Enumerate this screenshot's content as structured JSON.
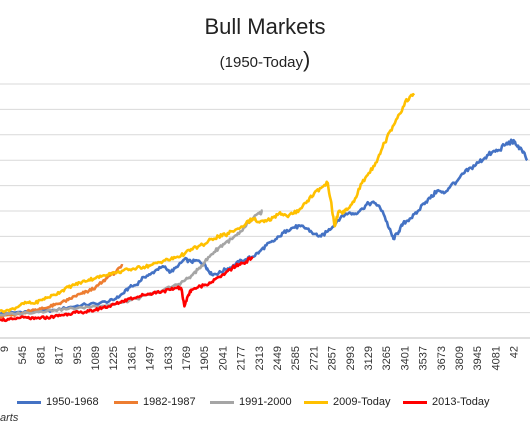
{
  "chart_data": {
    "type": "line",
    "title": "Bull Markets",
    "subtitle": "(1950-Today",
    "subtitle_close": ")",
    "xlabel": "",
    "ylabel": "",
    "grid": "horizontal",
    "legend_position": "bottom",
    "source_note": "arts",
    "x_ticks": [
      "9",
      "545",
      "681",
      "817",
      "953",
      "1089",
      "1225",
      "1361",
      "1497",
      "1633",
      "1769",
      "1905",
      "2041",
      "2177",
      "2313",
      "2449",
      "2585",
      "2721",
      "2857",
      "2993",
      "3129",
      "3265",
      "3401",
      "3537",
      "3673",
      "3809",
      "3945",
      "4081",
      "42"
    ],
    "series": [
      {
        "name": "1950-1968",
        "color": "#4472c4",
        "points": [
          [
            400,
            0.95
          ],
          [
            500,
            1.0
          ],
          [
            600,
            1.05
          ],
          [
            700,
            1.05
          ],
          [
            800,
            1.1
          ],
          [
            900,
            1.2
          ],
          [
            1000,
            1.3
          ],
          [
            1100,
            1.35
          ],
          [
            1200,
            1.45
          ],
          [
            1250,
            1.55
          ],
          [
            1300,
            1.75
          ],
          [
            1350,
            2.0
          ],
          [
            1400,
            2.1
          ],
          [
            1450,
            2.4
          ],
          [
            1500,
            2.5
          ],
          [
            1550,
            2.7
          ],
          [
            1600,
            2.8
          ],
          [
            1650,
            2.6
          ],
          [
            1700,
            2.8
          ],
          [
            1750,
            3.1
          ],
          [
            1800,
            3.0
          ],
          [
            1850,
            3.05
          ],
          [
            1900,
            2.9
          ],
          [
            1920,
            2.7
          ],
          [
            1950,
            2.5
          ],
          [
            2000,
            2.55
          ],
          [
            2050,
            2.7
          ],
          [
            2100,
            2.8
          ],
          [
            2150,
            3.0
          ],
          [
            2200,
            3.1
          ],
          [
            2250,
            3.2
          ],
          [
            2300,
            3.4
          ],
          [
            2350,
            3.65
          ],
          [
            2400,
            3.8
          ],
          [
            2450,
            4.0
          ],
          [
            2500,
            4.25
          ],
          [
            2550,
            4.35
          ],
          [
            2600,
            4.4
          ],
          [
            2650,
            4.3
          ],
          [
            2700,
            4.1
          ],
          [
            2750,
            4.0
          ],
          [
            2800,
            4.2
          ],
          [
            2850,
            4.5
          ],
          [
            2900,
            4.8
          ],
          [
            2950,
            4.9
          ],
          [
            3000,
            4.9
          ],
          [
            3050,
            5.1
          ],
          [
            3100,
            5.3
          ],
          [
            3150,
            5.3
          ],
          [
            3200,
            5.0
          ],
          [
            3250,
            4.3
          ],
          [
            3280,
            3.9
          ],
          [
            3320,
            4.2
          ],
          [
            3350,
            4.5
          ],
          [
            3400,
            4.7
          ],
          [
            3450,
            4.9
          ],
          [
            3500,
            5.3
          ],
          [
            3550,
            5.5
          ],
          [
            3600,
            5.8
          ],
          [
            3650,
            5.7
          ],
          [
            3700,
            6.0
          ],
          [
            3750,
            6.2
          ],
          [
            3800,
            6.5
          ],
          [
            3850,
            6.7
          ],
          [
            3900,
            6.9
          ],
          [
            3950,
            7.1
          ],
          [
            4000,
            7.3
          ],
          [
            4050,
            7.4
          ],
          [
            4100,
            7.6
          ],
          [
            4150,
            7.75
          ],
          [
            4180,
            7.6
          ],
          [
            4220,
            7.4
          ],
          [
            4260,
            7.0
          ]
        ]
      },
      {
        "name": "1982-1987",
        "color": "#ed7d31",
        "points": [
          [
            400,
            0.85
          ],
          [
            450,
            0.9
          ],
          [
            500,
            0.9
          ],
          [
            550,
            0.95
          ],
          [
            600,
            1.05
          ],
          [
            650,
            1.1
          ],
          [
            700,
            1.15
          ],
          [
            750,
            1.2
          ],
          [
            800,
            1.3
          ],
          [
            850,
            1.4
          ],
          [
            900,
            1.5
          ],
          [
            950,
            1.65
          ],
          [
            1000,
            1.75
          ],
          [
            1050,
            1.85
          ],
          [
            1100,
            2.0
          ],
          [
            1150,
            2.2
          ],
          [
            1200,
            2.45
          ],
          [
            1250,
            2.6
          ],
          [
            1300,
            2.85
          ]
        ]
      },
      {
        "name": "1991-2000",
        "color": "#a5a5a5",
        "points": [
          [
            400,
            0.9
          ],
          [
            500,
            0.95
          ],
          [
            600,
            1.0
          ],
          [
            700,
            1.05
          ],
          [
            800,
            1.1
          ],
          [
            900,
            1.15
          ],
          [
            1000,
            1.2
          ],
          [
            1100,
            1.25
          ],
          [
            1200,
            1.3
          ],
          [
            1300,
            1.4
          ],
          [
            1400,
            1.55
          ],
          [
            1500,
            1.7
          ],
          [
            1600,
            1.9
          ],
          [
            1700,
            2.1
          ],
          [
            1750,
            2.25
          ],
          [
            1800,
            2.45
          ],
          [
            1850,
            2.7
          ],
          [
            1900,
            3.0
          ],
          [
            1950,
            3.3
          ],
          [
            2000,
            3.55
          ],
          [
            2050,
            3.75
          ],
          [
            2100,
            3.9
          ],
          [
            2150,
            4.1
          ],
          [
            2200,
            4.4
          ],
          [
            2250,
            4.7
          ],
          [
            2300,
            4.9
          ],
          [
            2320,
            5.0
          ]
        ]
      },
      {
        "name": "2009-Today",
        "color": "#ffc000",
        "points": [
          [
            400,
            1.05
          ],
          [
            450,
            1.1
          ],
          [
            500,
            1.15
          ],
          [
            550,
            1.3
          ],
          [
            600,
            1.4
          ],
          [
            650,
            1.35
          ],
          [
            700,
            1.5
          ],
          [
            750,
            1.6
          ],
          [
            800,
            1.7
          ],
          [
            850,
            1.85
          ],
          [
            900,
            2.0
          ],
          [
            950,
            2.1
          ],
          [
            1000,
            2.2
          ],
          [
            1050,
            2.3
          ],
          [
            1100,
            2.35
          ],
          [
            1150,
            2.45
          ],
          [
            1200,
            2.55
          ],
          [
            1250,
            2.55
          ],
          [
            1300,
            2.65
          ],
          [
            1350,
            2.7
          ],
          [
            1400,
            2.75
          ],
          [
            1450,
            2.8
          ],
          [
            1500,
            2.85
          ],
          [
            1550,
            2.95
          ],
          [
            1600,
            3.05
          ],
          [
            1650,
            3.1
          ],
          [
            1700,
            3.2
          ],
          [
            1750,
            3.3
          ],
          [
            1800,
            3.5
          ],
          [
            1850,
            3.6
          ],
          [
            1900,
            3.7
          ],
          [
            1950,
            3.9
          ],
          [
            2000,
            4.0
          ],
          [
            2050,
            4.05
          ],
          [
            2100,
            4.2
          ],
          [
            2150,
            4.3
          ],
          [
            2200,
            4.5
          ],
          [
            2250,
            4.7
          ],
          [
            2300,
            4.55
          ],
          [
            2350,
            4.6
          ],
          [
            2400,
            4.75
          ],
          [
            2450,
            4.95
          ],
          [
            2500,
            4.8
          ],
          [
            2550,
            4.9
          ],
          [
            2600,
            5.1
          ],
          [
            2650,
            5.4
          ],
          [
            2700,
            5.7
          ],
          [
            2750,
            5.9
          ],
          [
            2800,
            6.1
          ],
          [
            2830,
            5.1
          ],
          [
            2850,
            4.4
          ],
          [
            2880,
            5.0
          ],
          [
            2920,
            4.95
          ],
          [
            2950,
            5.1
          ],
          [
            3000,
            5.5
          ],
          [
            3050,
            6.1
          ],
          [
            3100,
            6.5
          ],
          [
            3150,
            6.9
          ],
          [
            3200,
            7.5
          ],
          [
            3250,
            8.1
          ],
          [
            3300,
            8.6
          ],
          [
            3350,
            9.1
          ],
          [
            3400,
            9.5
          ],
          [
            3430,
            9.55
          ]
        ]
      },
      {
        "name": "2013-Today",
        "color": "#ff0000",
        "points": [
          [
            400,
            0.75
          ],
          [
            450,
            0.7
          ],
          [
            500,
            0.75
          ],
          [
            550,
            0.8
          ],
          [
            600,
            0.8
          ],
          [
            650,
            0.75
          ],
          [
            700,
            0.8
          ],
          [
            750,
            0.8
          ],
          [
            800,
            0.85
          ],
          [
            850,
            0.9
          ],
          [
            900,
            0.95
          ],
          [
            950,
            1.0
          ],
          [
            1000,
            1.0
          ],
          [
            1050,
            1.05
          ],
          [
            1100,
            1.1
          ],
          [
            1150,
            1.2
          ],
          [
            1200,
            1.25
          ],
          [
            1250,
            1.35
          ],
          [
            1300,
            1.45
          ],
          [
            1350,
            1.55
          ],
          [
            1400,
            1.6
          ],
          [
            1450,
            1.7
          ],
          [
            1500,
            1.75
          ],
          [
            1550,
            1.8
          ],
          [
            1600,
            1.85
          ],
          [
            1650,
            1.9
          ],
          [
            1700,
            2.0
          ],
          [
            1730,
            1.9
          ],
          [
            1750,
            1.25
          ],
          [
            1780,
            1.7
          ],
          [
            1800,
            1.9
          ],
          [
            1850,
            2.0
          ],
          [
            1900,
            2.1
          ],
          [
            1950,
            2.2
          ],
          [
            2000,
            2.4
          ],
          [
            2050,
            2.55
          ],
          [
            2100,
            2.75
          ],
          [
            2150,
            2.9
          ],
          [
            2200,
            3.0
          ],
          [
            2250,
            3.2
          ]
        ]
      }
    ]
  }
}
